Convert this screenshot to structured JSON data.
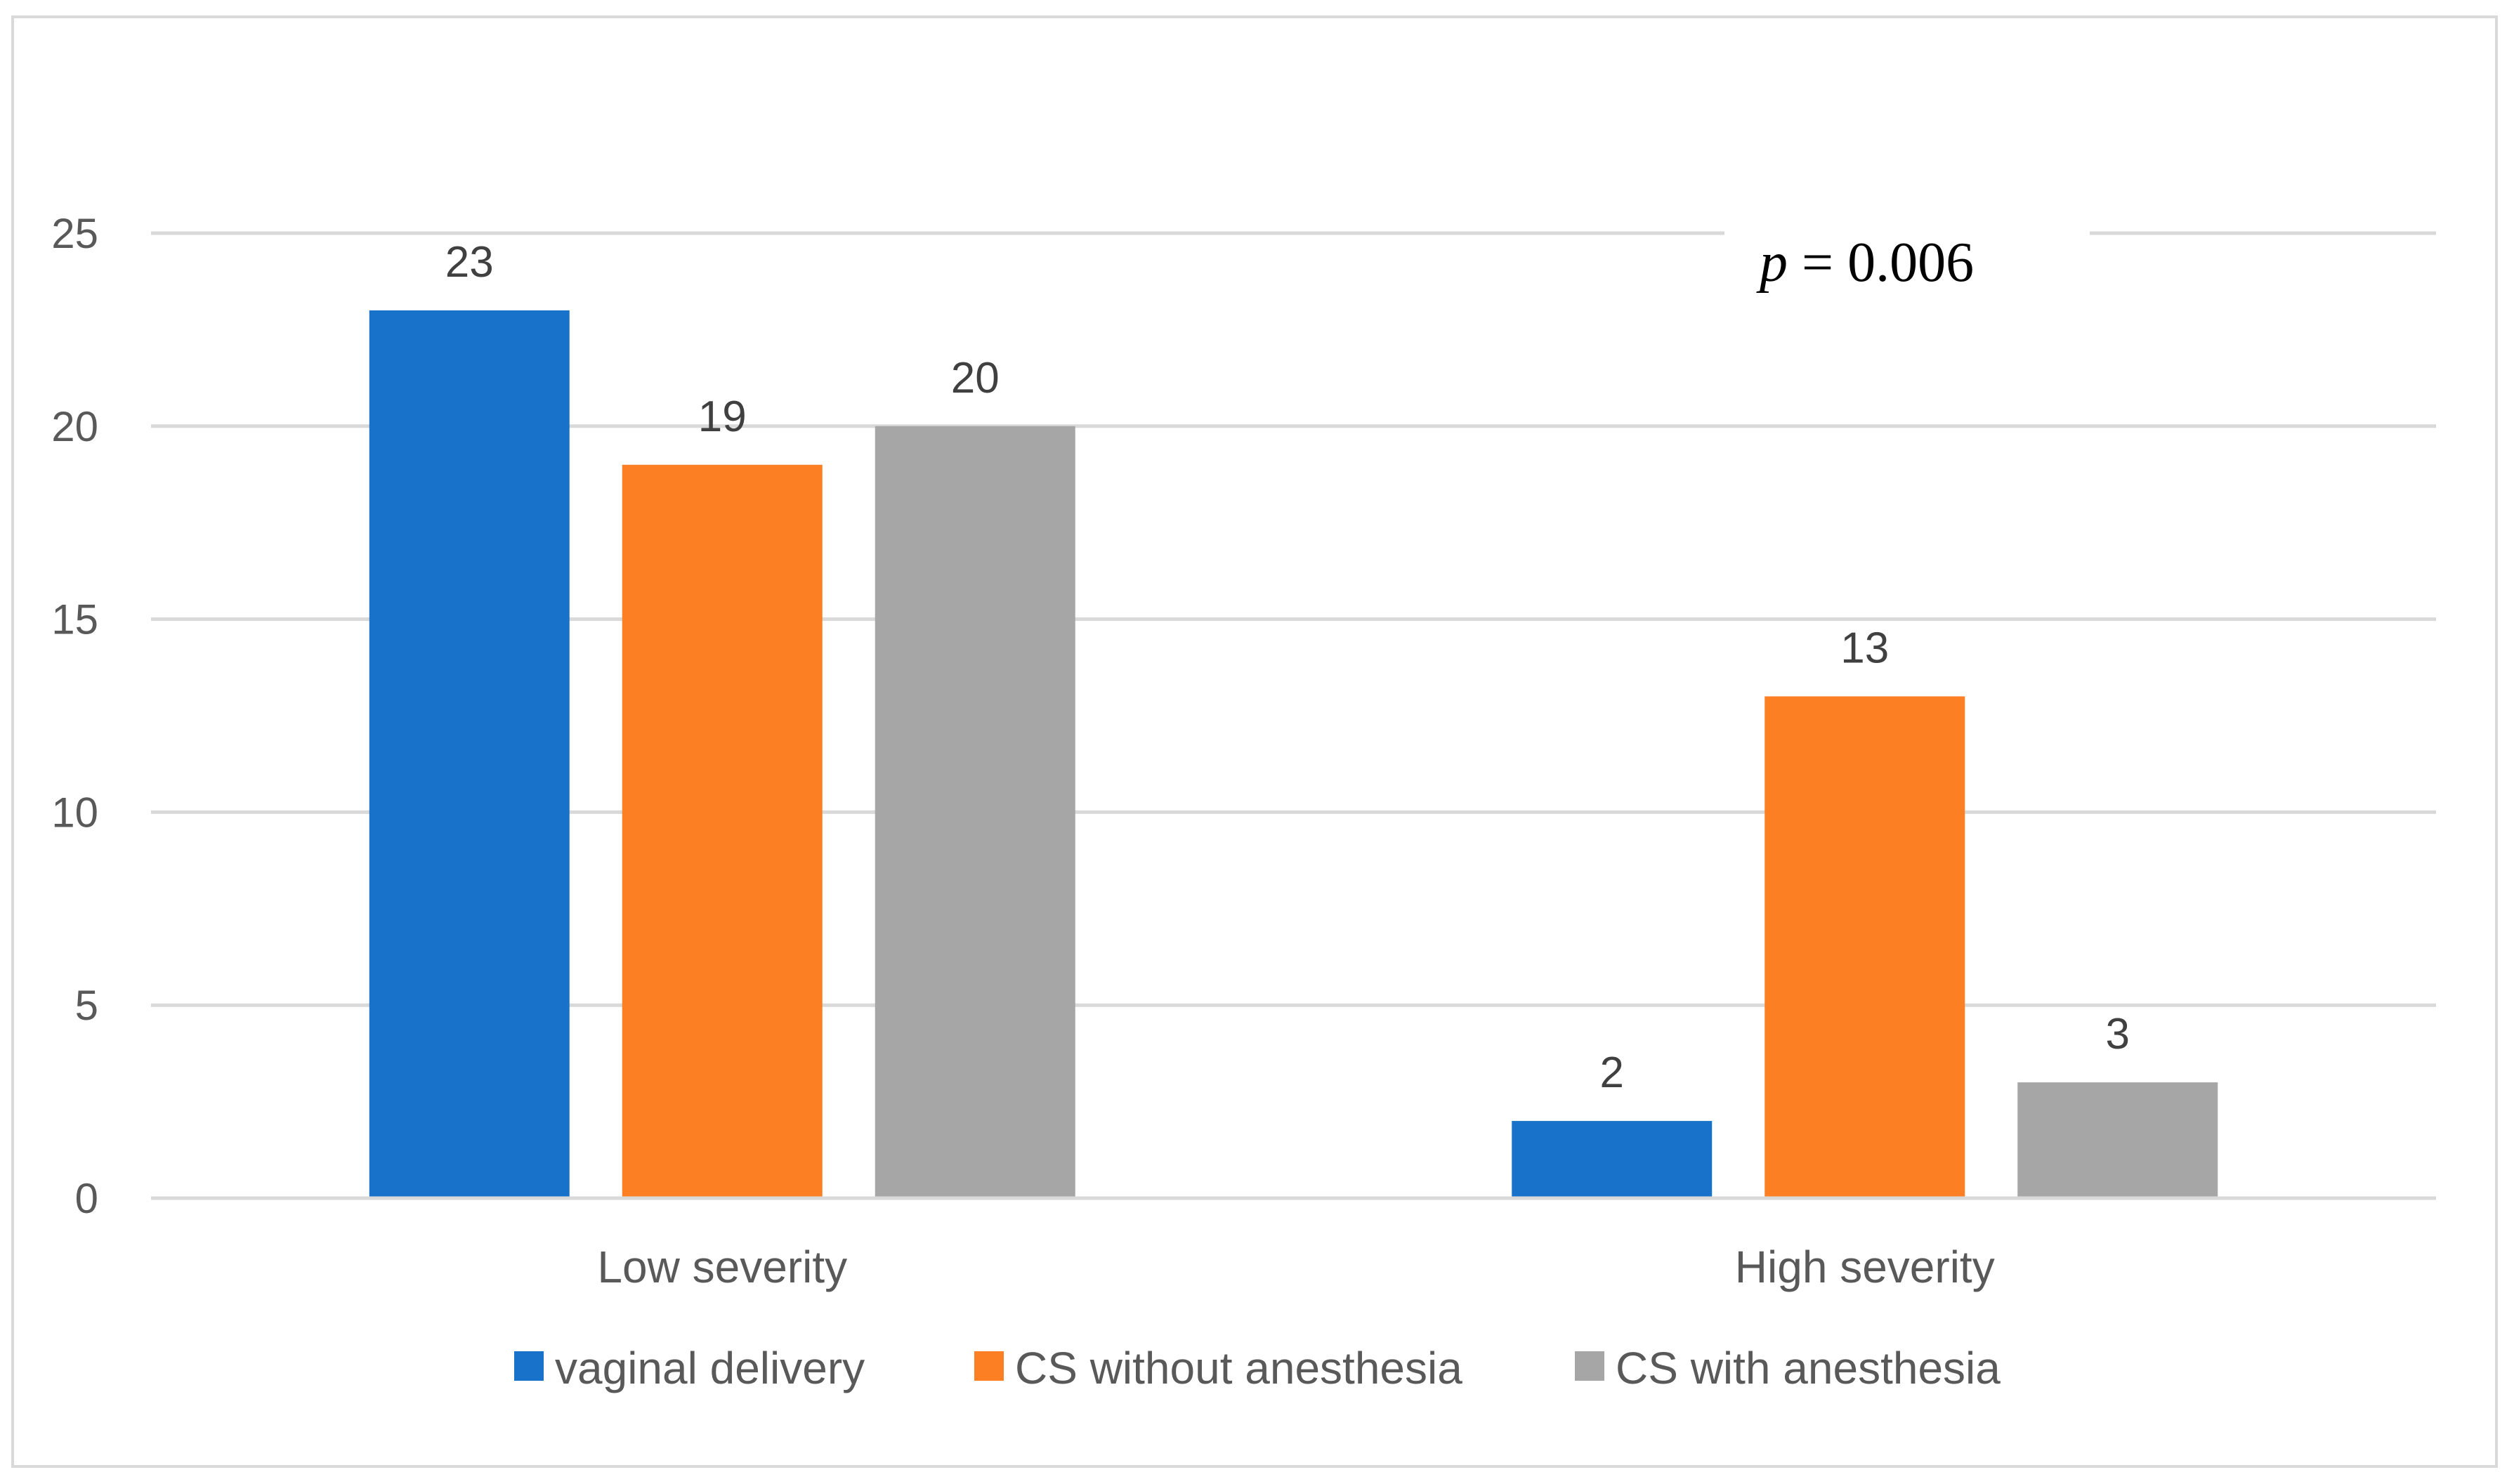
{
  "chart_data": {
    "type": "bar",
    "title": "",
    "xlabel": "",
    "ylabel": "",
    "categories": [
      "Low severity",
      "High severity"
    ],
    "series": [
      {
        "name": "vaginal delivery",
        "values": [
          23,
          2
        ],
        "color": "#1872C9"
      },
      {
        "name": "CS without anesthesia",
        "values": [
          19,
          13
        ],
        "color": "#FD7F24"
      },
      {
        "name": "CS with anesthesia",
        "values": [
          20,
          3
        ],
        "color": "#A6A6A6"
      }
    ],
    "ylim": [
      0,
      25
    ],
    "yticks": [
      0,
      5,
      10,
      15,
      20,
      25
    ],
    "grid": true,
    "legend_position": "bottom",
    "annotation": {
      "italic_part": "p",
      "rest": " = 0.006"
    }
  }
}
